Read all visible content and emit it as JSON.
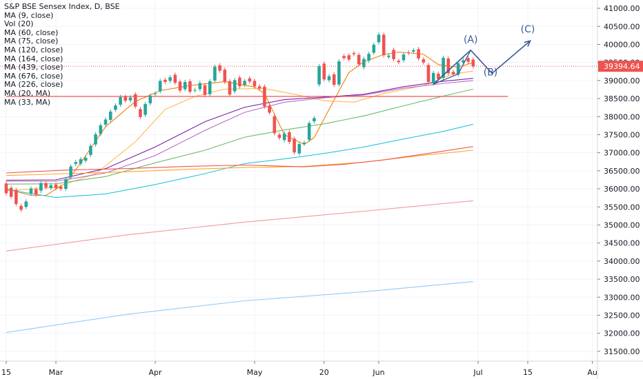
{
  "chart_data": {
    "type": "candlestick",
    "title": "S&P BSE Sensex Index, D, BSE",
    "legend_placement": "top-left",
    "studies": [
      "MA (9, close)",
      "Vol (20)",
      "MA (60, close)",
      "MA (75, close)",
      "MA (120, close)",
      "MA (164, close)",
      "MA (439, close)",
      "MA (676, close)",
      "MA (226, close)",
      "MA (20, MA)",
      "MA (33, MA)"
    ],
    "y_axis": {
      "ylim": [
        31230,
        41230
      ],
      "ticks": [
        "41000.00",
        "40500.00",
        "40000.00",
        "39500.00",
        "39000.00",
        "38500.00",
        "38000.00",
        "37500.00",
        "37000.00",
        "36500.00",
        "36000.00",
        "35500.00",
        "35000.00",
        "34500.00",
        "34000.00",
        "33500.00",
        "33000.00",
        "32500.00",
        "32000.00",
        "31500.00"
      ]
    },
    "x_axis": {
      "ticks": [
        {
          "label": "15",
          "day": 0
        },
        {
          "label": "Mar",
          "day": 10
        },
        {
          "label": "Apr",
          "day": 30
        },
        {
          "label": "May",
          "day": 50
        },
        {
          "label": "20",
          "day": 64
        },
        {
          "label": "Jun",
          "day": 75
        },
        {
          "label": "Jul",
          "day": 95
        },
        {
          "label": "15",
          "day": 105
        },
        {
          "label": "Au",
          "day": 118
        }
      ]
    },
    "last_price": {
      "label": "39394.64",
      "value": 39394.64,
      "color": "#ef5350"
    },
    "colors": {
      "up": "#26a69a",
      "down": "#ef5350",
      "grid": "#f0f3fa",
      "axis_text": "#131722",
      "annotation": "#3c5a99"
    },
    "candles": [
      [
        36150,
        35880
      ],
      [
        36030,
        35780
      ],
      [
        35970,
        35580
      ],
      [
        35530,
        35420
      ],
      [
        35500,
        35650
      ],
      [
        35860,
        36010
      ],
      [
        35990,
        35840
      ],
      [
        35950,
        36160
      ],
      [
        36160,
        36040
      ],
      [
        36020,
        36100
      ],
      [
        36120,
        36020
      ],
      [
        36060,
        36000
      ],
      [
        36000,
        36270
      ],
      [
        36320,
        36620
      ],
      [
        36690,
        36740
      ],
      [
        36700,
        36820
      ],
      [
        36780,
        36860
      ],
      [
        36940,
        37190
      ],
      [
        37230,
        37510
      ],
      [
        37520,
        37760
      ],
      [
        37780,
        37920
      ],
      [
        37910,
        38140
      ],
      [
        38190,
        38310
      ],
      [
        38330,
        38540
      ],
      [
        38550,
        38440
      ],
      [
        38450,
        38530
      ],
      [
        38620,
        38280
      ],
      [
        38210,
        37990
      ],
      [
        38050,
        38350
      ],
      [
        38370,
        38580
      ],
      [
        38620,
        38640
      ],
      [
        38700,
        38990
      ],
      [
        39020,
        38960
      ],
      [
        38990,
        39090
      ],
      [
        39160,
        38940
      ],
      [
        38970,
        38720
      ],
      [
        38760,
        38960
      ],
      [
        38980,
        38690
      ],
      [
        38730,
        38740
      ],
      [
        38760,
        38930
      ],
      [
        38870,
        38600
      ],
      [
        38620,
        38980
      ],
      [
        39000,
        39380
      ],
      [
        39420,
        39270
      ],
      [
        39300,
        38960
      ],
      [
        38980,
        38610
      ],
      [
        38700,
        39010
      ],
      [
        39080,
        38840
      ],
      [
        38880,
        38990
      ],
      [
        39060,
        38970
      ],
      [
        38990,
        38840
      ],
      [
        38840,
        38780
      ],
      [
        38830,
        38280
      ],
      [
        38300,
        38110
      ],
      [
        38010,
        37540
      ],
      [
        37500,
        37410
      ],
      [
        37350,
        37530
      ],
      [
        37570,
        37300
      ],
      [
        37390,
        37010
      ],
      [
        36980,
        37240
      ],
      [
        37250,
        37280
      ],
      [
        37360,
        37820
      ],
      [
        37870,
        37960
      ],
      [
        38890,
        39400
      ],
      [
        39470,
        39030
      ],
      [
        39010,
        39120
      ],
      [
        39170,
        38880
      ],
      [
        38890,
        39530
      ],
      [
        39680,
        39620
      ],
      [
        39700,
        39580
      ],
      [
        39760,
        39730
      ],
      [
        39710,
        39450
      ],
      [
        39370,
        39600
      ],
      [
        39550,
        39740
      ],
      [
        39770,
        39990
      ],
      [
        40060,
        40270
      ],
      [
        40270,
        39700
      ],
      [
        39650,
        39690
      ],
      [
        39850,
        39590
      ],
      [
        39550,
        39510
      ],
      [
        39560,
        39720
      ],
      [
        39780,
        39760
      ],
      [
        39800,
        39840
      ],
      [
        39870,
        39610
      ],
      [
        39590,
        39500
      ],
      [
        39430,
        38960
      ],
      [
        38920,
        39210
      ],
      [
        39190,
        39040
      ],
      [
        39080,
        39630
      ],
      [
        39610,
        39200
      ],
      [
        39240,
        39170
      ],
      [
        39170,
        39480
      ],
      [
        39500,
        39560
      ],
      [
        39620,
        39520
      ],
      [
        39580,
        39390
      ]
    ],
    "ma_series": [
      {
        "color": "#f57c00",
        "values": [
          [
            0,
            36000
          ],
          [
            5,
            35820
          ],
          [
            8,
            35820
          ],
          [
            12,
            36160
          ],
          [
            15,
            36720
          ],
          [
            20,
            37720
          ],
          [
            26,
            38420
          ],
          [
            31,
            38720
          ],
          [
            37,
            38860
          ],
          [
            44,
            38970
          ],
          [
            50,
            38820
          ],
          [
            52,
            38640
          ],
          [
            56,
            37500
          ],
          [
            60,
            37230
          ],
          [
            62,
            37420
          ],
          [
            66,
            38460
          ],
          [
            69,
            39220
          ],
          [
            72,
            39520
          ],
          [
            76,
            39720
          ],
          [
            79,
            39790
          ],
          [
            84,
            39730
          ],
          [
            87,
            39440
          ],
          [
            91,
            39370
          ],
          [
            94,
            39500
          ]
        ]
      },
      {
        "color": "#ffb74d",
        "values": [
          [
            0,
            35950
          ],
          [
            10,
            36040
          ],
          [
            18,
            36420
          ],
          [
            26,
            37300
          ],
          [
            32,
            38200
          ],
          [
            38,
            38560
          ],
          [
            44,
            38760
          ],
          [
            52,
            38780
          ],
          [
            58,
            38620
          ],
          [
            64,
            38440
          ],
          [
            70,
            38400
          ],
          [
            76,
            38640
          ],
          [
            84,
            38860
          ],
          [
            90,
            39180
          ],
          [
            94,
            39260
          ]
        ]
      },
      {
        "color": "#7b1fa2",
        "values": [
          [
            0,
            36240
          ],
          [
            10,
            36250
          ],
          [
            20,
            36560
          ],
          [
            30,
            37160
          ],
          [
            40,
            37860
          ],
          [
            48,
            38260
          ],
          [
            56,
            38470
          ],
          [
            64,
            38540
          ],
          [
            72,
            38620
          ],
          [
            80,
            38830
          ],
          [
            88,
            38980
          ],
          [
            94,
            39060
          ]
        ]
      },
      {
        "color": "#ba68c8",
        "values": [
          [
            0,
            36210
          ],
          [
            10,
            36210
          ],
          [
            20,
            36440
          ],
          [
            30,
            36920
          ],
          [
            40,
            37620
          ],
          [
            48,
            38120
          ],
          [
            56,
            38400
          ],
          [
            64,
            38520
          ],
          [
            72,
            38600
          ],
          [
            80,
            38790
          ],
          [
            88,
            38920
          ],
          [
            94,
            39000
          ]
        ]
      },
      {
        "color": "#66bb6a",
        "values": [
          [
            0,
            36130
          ],
          [
            10,
            36140
          ],
          [
            20,
            36340
          ],
          [
            30,
            36720
          ],
          [
            40,
            37070
          ],
          [
            48,
            37430
          ],
          [
            56,
            37630
          ],
          [
            64,
            37800
          ],
          [
            72,
            38020
          ],
          [
            80,
            38300
          ],
          [
            88,
            38570
          ],
          [
            94,
            38760
          ]
        ]
      },
      {
        "color": "#26c6da",
        "values": [
          [
            0,
            35980
          ],
          [
            10,
            35760
          ],
          [
            20,
            35860
          ],
          [
            30,
            36120
          ],
          [
            40,
            36420
          ],
          [
            48,
            36700
          ],
          [
            56,
            36830
          ],
          [
            64,
            36980
          ],
          [
            72,
            37160
          ],
          [
            80,
            37380
          ],
          [
            88,
            37590
          ],
          [
            94,
            37790
          ]
        ]
      },
      {
        "color": "#ffa726",
        "values": [
          [
            0,
            36370
          ],
          [
            12,
            36420
          ],
          [
            24,
            36470
          ],
          [
            36,
            36540
          ],
          [
            48,
            36590
          ],
          [
            60,
            36620
          ],
          [
            72,
            36740
          ],
          [
            84,
            36930
          ],
          [
            94,
            37070
          ]
        ]
      },
      {
        "color": "#ef5350",
        "values": [
          [
            0,
            36440
          ],
          [
            12,
            36520
          ],
          [
            24,
            36560
          ],
          [
            36,
            36620
          ],
          [
            48,
            36660
          ],
          [
            60,
            36610
          ],
          [
            68,
            36680
          ],
          [
            76,
            36800
          ],
          [
            84,
            36960
          ],
          [
            94,
            37170
          ]
        ]
      },
      {
        "color": "#ef9a9a",
        "values": [
          [
            0,
            34280
          ],
          [
            24,
            34720
          ],
          [
            48,
            35080
          ],
          [
            72,
            35380
          ],
          [
            94,
            35670
          ]
        ]
      },
      {
        "color": "#90caf9",
        "values": [
          [
            0,
            32020
          ],
          [
            24,
            32520
          ],
          [
            48,
            32900
          ],
          [
            72,
            33150
          ],
          [
            94,
            33430
          ]
        ]
      }
    ],
    "hline": {
      "value": 38560,
      "day_from": 0,
      "day_to": 101,
      "color": "#ef5350"
    },
    "annotations": [
      {
        "text": "(A)",
        "day": 93.5,
        "value": 40050
      },
      {
        "text": "(B)",
        "day": 97.5,
        "value": 39140
      },
      {
        "text": "(C)",
        "day": 105,
        "value": 40330
      }
    ],
    "wave_path": [
      [
        86,
        38900
      ],
      [
        93.5,
        39840
      ],
      [
        97.8,
        39200
      ],
      [
        105.5,
        40100
      ]
    ],
    "triangle_path": [
      [
        86,
        38900
      ],
      [
        93.5,
        39840
      ],
      [
        91,
        39180
      ],
      [
        86,
        38900
      ]
    ]
  }
}
